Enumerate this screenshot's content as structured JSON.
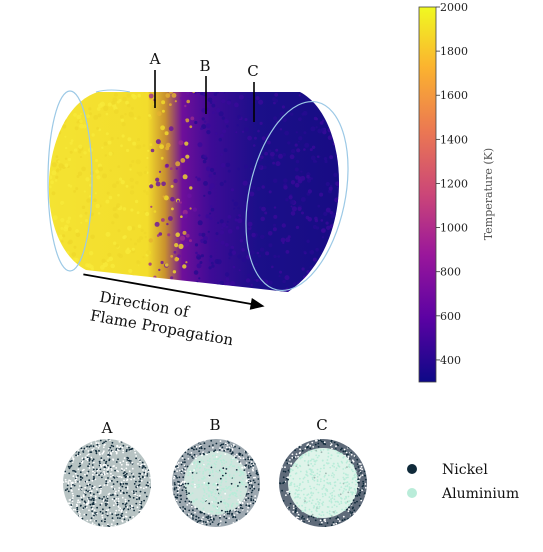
{
  "cylinder": {
    "section_labels": [
      "A",
      "B",
      "C"
    ],
    "direction_label_line1": "Direction of",
    "direction_label_line2": "Flame Propagation"
  },
  "colorbar": {
    "label": "Temperature (K)",
    "min": 300,
    "max": 2000,
    "ticks": [
      "400",
      "600",
      "800",
      "1000",
      "1200",
      "1400",
      "1600",
      "1800",
      "2000"
    ],
    "colormap": [
      "#0d0887",
      "#5b02a3",
      "#9a179b",
      "#cb4678",
      "#eb7852",
      "#fbb32f",
      "#f0f921"
    ]
  },
  "cross_sections": {
    "labels": [
      "A",
      "B",
      "C"
    ]
  },
  "legend": {
    "nickel_label": "Nickel",
    "aluminium_label": "Aluminium",
    "nickel_color": "#0f2a3a",
    "aluminium_color": "#b9ecd9"
  }
}
